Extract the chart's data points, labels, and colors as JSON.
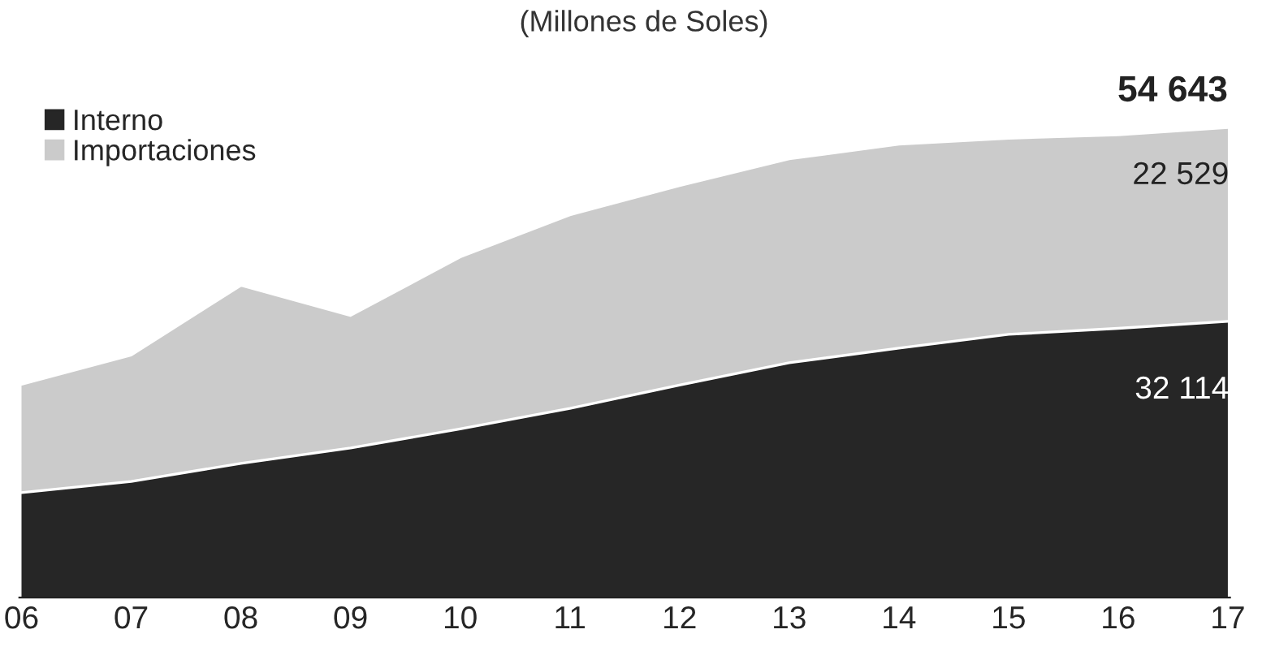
{
  "chart_data": {
    "type": "area",
    "subtitle": "(Millones de Soles)",
    "stacked": true,
    "legend": "top left",
    "categories": [
      "06",
      "07",
      "08",
      "09",
      "10",
      "11",
      "12",
      "13",
      "14",
      "15",
      "16",
      "17"
    ],
    "series": [
      {
        "name": "Interno",
        "color": "#262626",
        "values": [
          12200,
          13500,
          15600,
          17400,
          19600,
          22000,
          24700,
          27300,
          29000,
          30600,
          31300,
          32114
        ],
        "value_labels": [
          null,
          null,
          null,
          null,
          null,
          null,
          null,
          null,
          null,
          null,
          null,
          "32 114"
        ]
      },
      {
        "name": "Importaciones",
        "color": "#cbcbcb",
        "values": [
          12600,
          14700,
          20700,
          15400,
          20000,
          22500,
          23200,
          23700,
          23700,
          22800,
          22500,
          22529
        ],
        "value_labels": [
          null,
          null,
          null,
          null,
          null,
          null,
          null,
          null,
          null,
          null,
          null,
          "22 529"
        ]
      }
    ],
    "totals": [
      null,
      null,
      null,
      null,
      null,
      null,
      null,
      null,
      null,
      null,
      null,
      "54 643"
    ]
  }
}
